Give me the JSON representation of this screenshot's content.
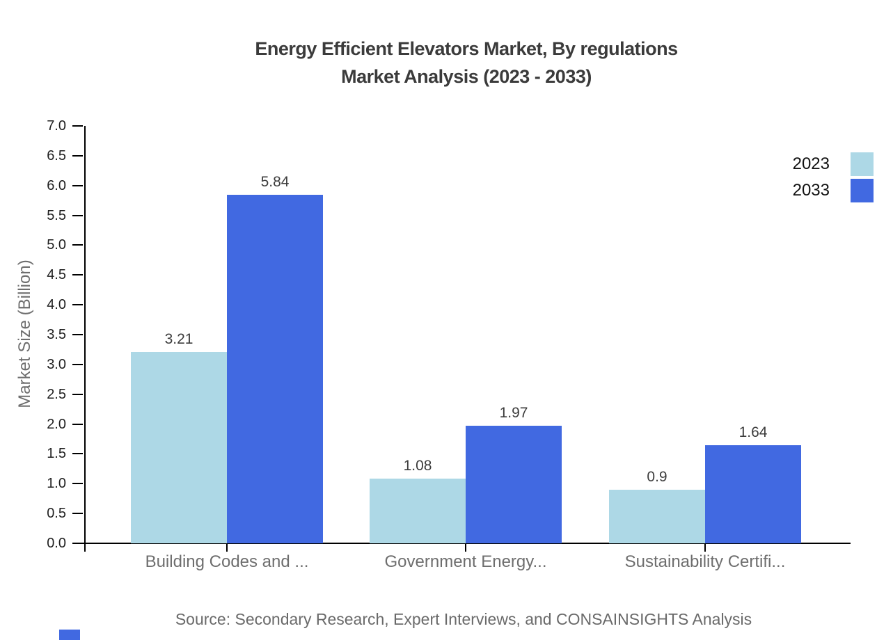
{
  "title": {
    "line1": "Energy Efficient Elevators Market, By regulations",
    "line2": "Market Analysis (2023 - 2033)"
  },
  "chart_data": {
    "type": "bar",
    "categories": [
      "Building Codes and ...",
      "Government Energy...",
      "Sustainability Certifi..."
    ],
    "series": [
      {
        "name": "2023",
        "color": "#ADD8E6",
        "values": [
          3.21,
          1.08,
          0.9
        ]
      },
      {
        "name": "2033",
        "color": "#4169E1",
        "values": [
          5.84,
          1.97,
          1.64
        ]
      }
    ],
    "xlabel": "",
    "ylabel": "Market Size (Billion)",
    "ylim": [
      0,
      7
    ],
    "yticks": [
      "0.0",
      "0.5",
      "1.0",
      "1.5",
      "2.0",
      "2.5",
      "3.0",
      "3.5",
      "4.0",
      "4.5",
      "5.0",
      "5.5",
      "6.0",
      "6.5",
      "7.0"
    ],
    "grid": false,
    "legend_position": "top-right"
  },
  "source_note": "Source: Secondary Research, Expert Interviews, and CONSAINSIGHTS Analysis",
  "watermark_color": "#4169E1"
}
